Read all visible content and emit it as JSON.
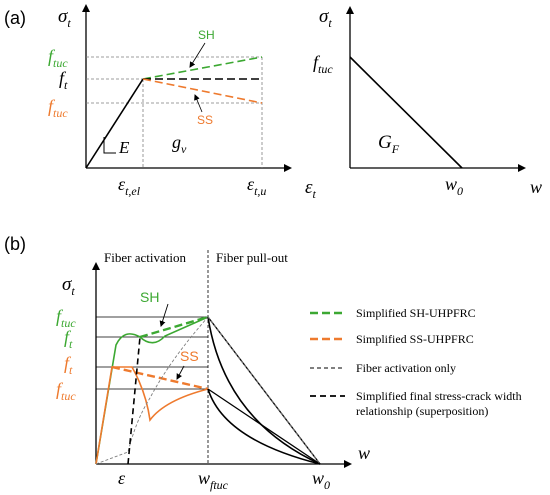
{
  "colors": {
    "green": "#3ca832",
    "orange": "#ee7a2e",
    "black": "#000000",
    "grey": "#7f7f7f"
  },
  "panel_a": {
    "label": "(a)",
    "left": {
      "y_axis_symbol": "σ",
      "y_axis_sub": "t",
      "x_axis_symbol": "ε",
      "x_axis_sub": "t",
      "y_ticks": [
        {
          "main": "f",
          "sub": "tuc",
          "color": "green"
        },
        {
          "main": "f",
          "sub": "t",
          "color": "black"
        },
        {
          "main": "f",
          "sub": "tuc",
          "color": "orange"
        }
      ],
      "x_ticks": [
        {
          "main": "ε",
          "sub": "t,el"
        },
        {
          "main": "ε",
          "sub": "t,u"
        }
      ],
      "modulus_label": "E",
      "energy_main": "g",
      "energy_sub": "v",
      "annotation_sh": "SH",
      "annotation_ss": "SS"
    },
    "right": {
      "y_axis_symbol": "σ",
      "y_axis_sub": "t",
      "y_tick_main": "f",
      "y_tick_sub": "tuc",
      "x_axis_label": "w",
      "x_tick_main": "w",
      "x_tick_sub": "0",
      "energy_main": "G",
      "energy_sub": "F"
    }
  },
  "panel_b": {
    "label": "(b)",
    "y_axis_symbol": "σ",
    "y_axis_sub": "t",
    "x_axis_label": "w",
    "region_left": "Fiber activation",
    "region_right": "Fiber pull-out",
    "y_ticks": [
      {
        "main": "f",
        "sub": "tuc",
        "color": "green"
      },
      {
        "main": "f",
        "sub": "t",
        "color": "green"
      },
      {
        "main": "f",
        "sub": "t",
        "color": "orange"
      },
      {
        "main": "f",
        "sub": "tuc",
        "color": "orange"
      }
    ],
    "x_ticks": [
      {
        "main": "ε",
        "sub": ""
      },
      {
        "main": "w",
        "sub": "ftuc"
      },
      {
        "main": "w",
        "sub": "0"
      }
    ],
    "annotation_sh": "SH",
    "annotation_ss": "SS",
    "legend": [
      {
        "text": "Simplified SH-UHPFRC",
        "style": "green-dash"
      },
      {
        "text": "Simplified SS-UHPFRC",
        "style": "orange-dash"
      },
      {
        "text": "Fiber activation only",
        "style": "thin-black-dash"
      },
      {
        "text": "Simplified final stress-crack width",
        "style": "thick-black-dash"
      },
      {
        "text": "relationship (superposition)",
        "style": "none"
      }
    ]
  }
}
